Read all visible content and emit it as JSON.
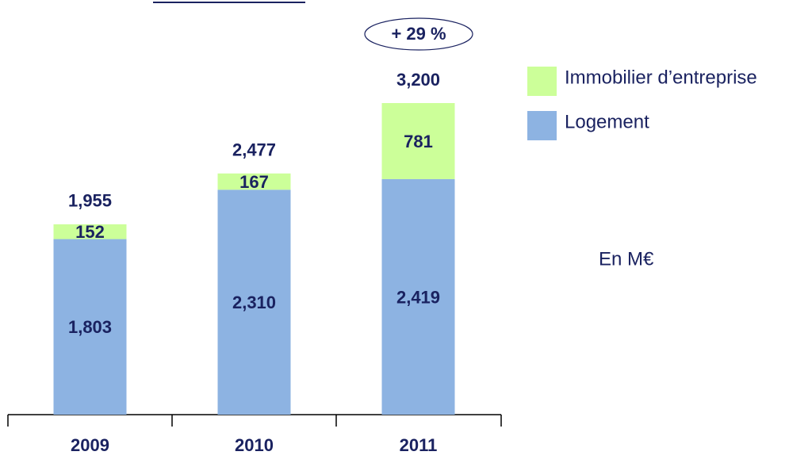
{
  "chart_data": {
    "type": "stacked_bar",
    "categories": [
      "2009",
      "2010",
      "2011"
    ],
    "series": [
      {
        "name": "Logement",
        "color": "#8db3e2",
        "values": [
          1803,
          2310,
          2419
        ],
        "value_labels": [
          "1,803",
          "2,310",
          "2,419"
        ]
      },
      {
        "name": "Immobilier d’entreprise",
        "color": "#ccff99",
        "values": [
          152,
          167,
          781
        ]
      }
    ],
    "totals": [
      1955,
      2477,
      3200
    ],
    "total_labels": [
      "1,955",
      "2,477",
      "3,200"
    ],
    "annotation": "+ 29 %",
    "unit_note": "En M€"
  }
}
